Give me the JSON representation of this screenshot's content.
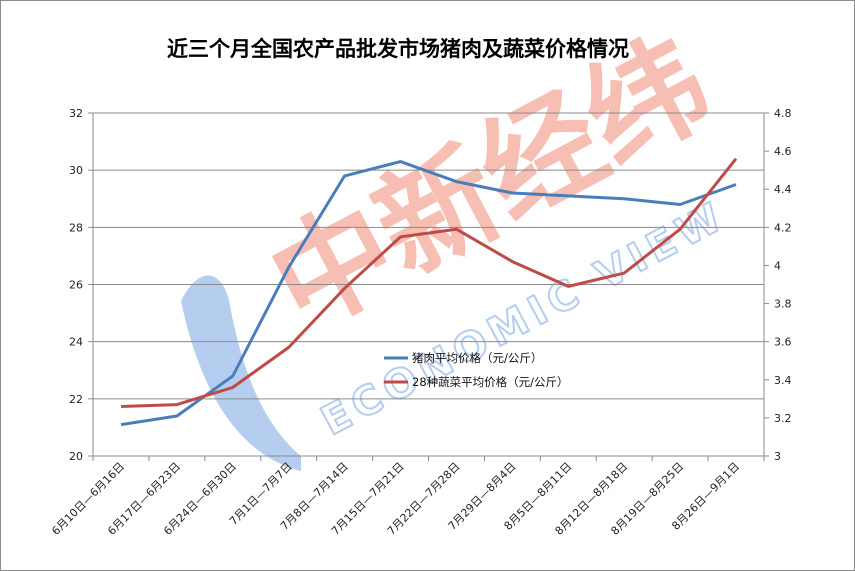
{
  "chart_data": {
    "type": "line",
    "title": "近三个月全国农产品批发市场猪肉及蔬菜价格情况",
    "categories": [
      "6月10日—6月16日",
      "6月17日—6月23日",
      "6月24日—6月30日",
      "7月1日—7月7日",
      "7月8日—7月14日",
      "7月15日—7月21日",
      "7月22日—7月28日",
      "7月29日—8月4日",
      "8月5日—8月11日",
      "8月12日—8月18日",
      "8月19日—8月25日",
      "8月26日—9月1日"
    ],
    "y_left": {
      "range": [
        20,
        32
      ],
      "ticks": [
        "20",
        "22",
        "24",
        "26",
        "28",
        "30",
        "32"
      ]
    },
    "y_right": {
      "range": [
        3,
        4.8
      ],
      "ticks": [
        "3",
        "3.2",
        "3.4",
        "3.6",
        "3.8",
        "4",
        "4.2",
        "4.4",
        "4.6",
        "4.8"
      ]
    },
    "grid": "horizontal",
    "legend_position": "center",
    "series": [
      {
        "name": "猪肉平均价格（元/公斤）",
        "axis": "left",
        "color": "#4a7ebb",
        "values": [
          21.1,
          21.4,
          22.8,
          26.6,
          29.8,
          30.3,
          29.6,
          29.2,
          29.1,
          29.0,
          28.8,
          29.5
        ]
      },
      {
        "name": "28种蔬菜平均价格（元/公斤）",
        "axis": "right",
        "color": "#be4b48",
        "values": [
          3.26,
          3.27,
          3.36,
          3.57,
          3.88,
          4.15,
          4.19,
          4.02,
          3.89,
          3.96,
          4.19,
          4.56
        ]
      }
    ]
  },
  "watermark": {
    "brand_cn": "中新经纬",
    "brand_en": "ECONOMIC VIEW",
    "logo_color": "#f4a89a",
    "text_color": "#9dbcea"
  }
}
